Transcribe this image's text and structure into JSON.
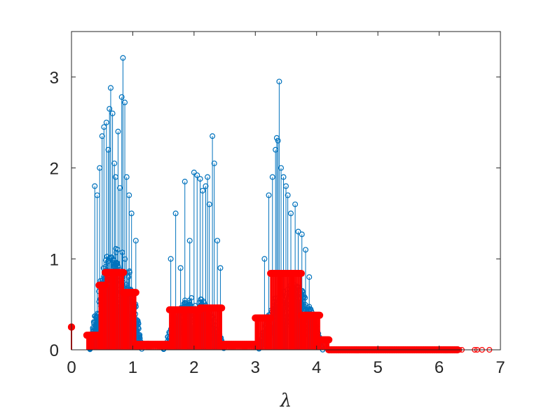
{
  "chart_data": {
    "type": "stem",
    "xlabel": "λ",
    "ylabel": "",
    "title": "",
    "xlim": [
      0,
      7
    ],
    "ylim": [
      0,
      3.5
    ],
    "xticks": [
      0,
      1,
      2,
      3,
      4,
      5,
      6,
      7
    ],
    "yticks": [
      0,
      1,
      2,
      3
    ],
    "grid": false,
    "box": true,
    "series": [
      {
        "style": "stem-open-circle",
        "color": "#0072BD",
        "clusters": [
          {
            "range": [
              0.3,
              1.15
            ],
            "background_max": 1.2
          },
          {
            "range": [
              1.5,
              2.5
            ],
            "background_max": 0.6
          },
          {
            "range": [
              3.05,
              4.1
            ],
            "background_max": 0.75
          }
        ],
        "peaks": [
          [
            0.38,
            1.8
          ],
          [
            0.42,
            1.7
          ],
          [
            0.46,
            2.0
          ],
          [
            0.5,
            2.35
          ],
          [
            0.53,
            2.45
          ],
          [
            0.57,
            2.5
          ],
          [
            0.6,
            2.2
          ],
          [
            0.62,
            2.65
          ],
          [
            0.64,
            2.88
          ],
          [
            0.67,
            2.6
          ],
          [
            0.7,
            2.05
          ],
          [
            0.72,
            1.9
          ],
          [
            0.76,
            2.4
          ],
          [
            0.79,
            1.78
          ],
          [
            0.82,
            2.78
          ],
          [
            0.84,
            3.21
          ],
          [
            0.87,
            2.72
          ],
          [
            0.9,
            1.9
          ],
          [
            0.94,
            1.7
          ],
          [
            0.98,
            1.5
          ],
          [
            1.05,
            1.2
          ],
          [
            1.62,
            1.0
          ],
          [
            1.7,
            1.5
          ],
          [
            1.78,
            0.9
          ],
          [
            1.85,
            1.85
          ],
          [
            1.93,
            1.2
          ],
          [
            2.0,
            1.95
          ],
          [
            2.05,
            1.92
          ],
          [
            2.1,
            1.88
          ],
          [
            2.14,
            1.75
          ],
          [
            2.19,
            1.8
          ],
          [
            2.22,
            1.9
          ],
          [
            2.25,
            1.6
          ],
          [
            2.3,
            2.35
          ],
          [
            2.33,
            2.05
          ],
          [
            2.38,
            1.2
          ],
          [
            2.43,
            0.9
          ],
          [
            3.15,
            1.0
          ],
          [
            3.22,
            1.7
          ],
          [
            3.28,
            1.9
          ],
          [
            3.33,
            2.2
          ],
          [
            3.35,
            2.33
          ],
          [
            3.37,
            2.3
          ],
          [
            3.39,
            2.95
          ],
          [
            3.42,
            2.0
          ],
          [
            3.46,
            1.9
          ],
          [
            3.5,
            1.8
          ],
          [
            3.53,
            1.7
          ],
          [
            3.58,
            1.5
          ],
          [
            3.65,
            1.6
          ],
          [
            3.7,
            1.3
          ],
          [
            3.76,
            1.27
          ],
          [
            3.82,
            1.1
          ],
          [
            3.88,
            0.8
          ]
        ]
      },
      {
        "style": "stem-open-circle",
        "color": "#FF0000",
        "steps": [
          [
            0.0,
            0.0,
            0.25
          ],
          [
            0.25,
            0.35,
            0.16
          ],
          [
            0.35,
            0.45,
            0.16
          ],
          [
            0.45,
            0.55,
            0.71
          ],
          [
            0.55,
            0.85,
            0.85
          ],
          [
            0.85,
            1.0,
            0.63
          ],
          [
            1.0,
            1.05,
            0.63
          ],
          [
            1.05,
            1.25,
            0.06
          ],
          [
            1.25,
            1.6,
            0.06
          ],
          [
            1.6,
            2.1,
            0.44
          ],
          [
            2.1,
            2.45,
            0.46
          ],
          [
            2.45,
            3.0,
            0.06
          ],
          [
            3.0,
            3.25,
            0.35
          ],
          [
            3.25,
            3.75,
            0.84
          ],
          [
            3.75,
            4.05,
            0.38
          ],
          [
            4.05,
            4.2,
            0.11
          ],
          [
            4.2,
            6.3,
            0.0
          ]
        ],
        "tail_points": [
          6.33,
          6.37,
          6.58,
          6.62,
          6.7,
          6.82
        ]
      }
    ]
  }
}
